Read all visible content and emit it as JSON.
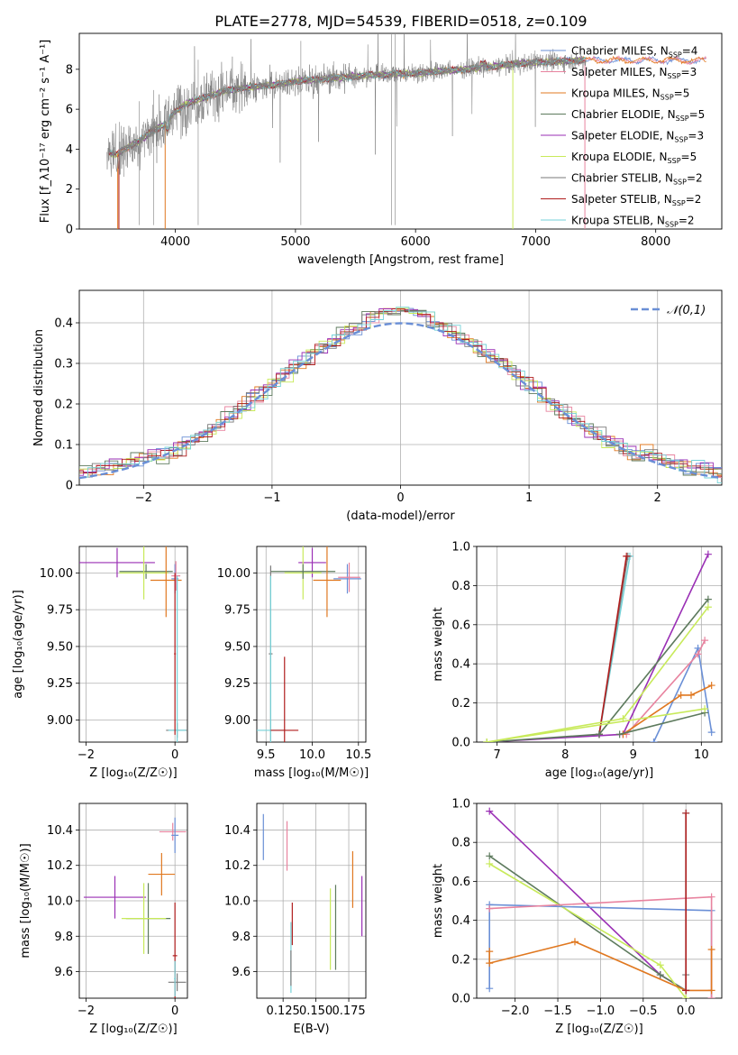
{
  "figure": {
    "title": "PLATE=2778, MJD=54539, FIBERID=0518, z=0.109"
  },
  "colors": {
    "chabrier_miles": "#6a8fd6",
    "salpeter_miles": "#e8839f",
    "kroupa_miles": "#e07820",
    "chabrier_elodie": "#5d7a5d",
    "salpeter_elodie": "#9a2fb5",
    "kroupa_elodie": "#c8ea5a",
    "chabrier_stelib": "#7a7a7a",
    "salpeter_stelib": "#b01d1d",
    "kroupa_stelib": "#75d2d8",
    "grid": "#b0b0b0",
    "observed": "#808080"
  },
  "chart_data": [
    {
      "id": "spectrum",
      "type": "line",
      "xlabel": "wavelength [Angstrom, rest frame]",
      "ylabel": "Flux [f_λ10⁻¹⁷ erg cm⁻² s⁻¹ A⁻¹]",
      "xlim": [
        3200,
        8550
      ],
      "ylim": [
        0,
        9.8
      ],
      "xticks": [
        4000,
        5000,
        6000,
        7000,
        8000
      ],
      "yticks": [
        0,
        2,
        4,
        6,
        8
      ],
      "grid": false,
      "legend_position": "upper-right",
      "continuum": [
        [
          3430,
          3.9
        ],
        [
          3500,
          3.7
        ],
        [
          3600,
          4.1
        ],
        [
          3700,
          4.4
        ],
        [
          3800,
          4.9
        ],
        [
          3900,
          5.2
        ],
        [
          4000,
          5.9
        ],
        [
          4100,
          6.3
        ],
        [
          4200,
          6.5
        ],
        [
          4400,
          6.9
        ],
        [
          4600,
          7.1
        ],
        [
          4800,
          7.2
        ],
        [
          5000,
          7.4
        ],
        [
          5200,
          7.5
        ],
        [
          5400,
          7.6
        ],
        [
          5600,
          7.7
        ],
        [
          5800,
          7.75
        ],
        [
          6000,
          7.8
        ],
        [
          6200,
          7.9
        ],
        [
          6400,
          8.0
        ],
        [
          6600,
          8.1
        ],
        [
          6800,
          8.25
        ],
        [
          7000,
          8.35
        ],
        [
          7200,
          8.4
        ],
        [
          7420,
          8.45
        ]
      ],
      "observed_range": [
        3430,
        7420
      ],
      "model_extension_range": [
        7420,
        8420
      ],
      "legend": [
        {
          "key": "chabrier_miles",
          "label": "Chabrier MILES, N",
          "sub": "SSP",
          "eq": "=4"
        },
        {
          "key": "salpeter_miles",
          "label": "Salpeter MILES, N",
          "sub": "SSP",
          "eq": "=3"
        },
        {
          "key": "kroupa_miles",
          "label": "Kroupa MILES, N",
          "sub": "SSP",
          "eq": "=5"
        },
        {
          "key": "chabrier_elodie",
          "label": "Chabrier ELODIE, N",
          "sub": "SSP",
          "eq": "=5"
        },
        {
          "key": "salpeter_elodie",
          "label": "Salpeter ELODIE, N",
          "sub": "SSP",
          "eq": "=3"
        },
        {
          "key": "kroupa_elodie",
          "label": "Kroupa ELODIE, N",
          "sub": "SSP",
          "eq": "=5"
        },
        {
          "key": "chabrier_stelib",
          "label": "Chabrier STELIB, N",
          "sub": "SSP",
          "eq": "=2"
        },
        {
          "key": "salpeter_stelib",
          "label": "Salpeter STELIB, N",
          "sub": "SSP",
          "eq": "=2"
        },
        {
          "key": "kroupa_stelib",
          "label": "Kroupa STELIB, N",
          "sub": "SSP",
          "eq": "=2"
        }
      ]
    },
    {
      "id": "residuals",
      "type": "line",
      "xlabel": "(data-model)/error",
      "ylabel": "Normed distribution",
      "xlim": [
        -2.5,
        2.5
      ],
      "ylim": [
        0,
        0.48
      ],
      "xticks": [
        -2,
        -1,
        0,
        1,
        2
      ],
      "yticks": [
        0.0,
        0.1,
        0.2,
        0.3,
        0.4
      ],
      "grid": true,
      "bin_width": 0.1,
      "legend": [
        {
          "label": "𝒩(0,1)",
          "style": "dashed",
          "color_key": "chabrier_miles"
        }
      ],
      "legend_position": "upper-right"
    },
    {
      "id": "age_vs_Z",
      "type": "scatter",
      "xlabel": "Z [log₁₀(Z/Z☉)]",
      "ylabel": "age  [log₁₀(age/yr)]",
      "xlim": [
        -2.15,
        0.28
      ],
      "ylim": [
        8.85,
        10.18
      ],
      "xticks": [
        -2,
        0
      ],
      "yticks": [
        9.0,
        9.25,
        9.5,
        9.75,
        10.0
      ],
      "ytick_labels": [
        "9.00",
        "9.25",
        "9.50",
        "9.75",
        "10.00"
      ],
      "grid": true,
      "points": [
        {
          "key": "salpeter_elodie",
          "x": -1.3,
          "y": 10.07,
          "xe": 0.85,
          "ye": 0.1
        },
        {
          "key": "chabrier_elodie",
          "x": -0.65,
          "y": 10.01,
          "xe": 0.6,
          "ye": 0.05
        },
        {
          "key": "kroupa_elodie",
          "x": -0.7,
          "y": 10.0,
          "xe": 0.55,
          "ye": 0.18
        },
        {
          "key": "kroupa_miles",
          "x": -0.2,
          "y": 9.95,
          "xe": 0.35,
          "ye": 0.25
        },
        {
          "key": "chabrier_miles",
          "x": 0.0,
          "y": 9.96,
          "xe": 0.08,
          "ye": 0.1
        },
        {
          "key": "salpeter_miles",
          "x": 0.02,
          "y": 9.98,
          "xe": 0.1,
          "ye": 0.1
        },
        {
          "key": "chabrier_stelib",
          "x": 0.05,
          "y": 8.93,
          "xe": 0.25,
          "ye": 0.05
        },
        {
          "key": "kroupa_stelib",
          "x": 0.05,
          "y": 8.93,
          "xe": 0.2,
          "ye": 1.05
        },
        {
          "key": "salpeter_stelib",
          "x": 0.0,
          "y": 9.45,
          "xe": 0.02,
          "ye": 0.55
        }
      ]
    },
    {
      "id": "age_vs_mass",
      "type": "scatter",
      "xlabel": "mass [log₁₀(M/M☉)]",
      "ylabel": "",
      "xlim": [
        9.4,
        10.58
      ],
      "ylim": [
        8.85,
        10.18
      ],
      "xticks": [
        9.5,
        10.0,
        10.5
      ],
      "xtick_labels": [
        "9.5",
        "10.0",
        "10.5"
      ],
      "yticks": [
        9.0,
        9.25,
        9.5,
        9.75,
        10.0
      ],
      "ytick_labels": [
        "9.00",
        "9.25",
        "9.50",
        "9.75",
        "10.00"
      ],
      "grid": true,
      "points": [
        {
          "key": "salpeter_elodie",
          "x": 10.0,
          "y": 10.07,
          "xe": 0.15,
          "ye": 0.1
        },
        {
          "key": "kroupa_elodie",
          "x": 9.9,
          "y": 10.0,
          "xe": 0.2,
          "ye": 0.18
        },
        {
          "key": "chabrier_elodie",
          "x": 9.9,
          "y": 10.01,
          "xe": 0.35,
          "ye": 0.05
        },
        {
          "key": "kroupa_miles",
          "x": 10.16,
          "y": 9.95,
          "xe": 0.15,
          "ye": 0.25
        },
        {
          "key": "chabrier_miles",
          "x": 10.38,
          "y": 9.96,
          "xe": 0.15,
          "ye": 0.1
        },
        {
          "key": "salpeter_miles",
          "x": 10.4,
          "y": 9.97,
          "xe": 0.12,
          "ye": 0.1
        },
        {
          "key": "chabrier_stelib",
          "x": 9.55,
          "y": 9.45,
          "xe": 0.02,
          "ye": 0.6
        },
        {
          "key": "kroupa_stelib",
          "x": 9.55,
          "y": 8.93,
          "xe": 0.15,
          "ye": 1.05
        },
        {
          "key": "salpeter_stelib",
          "x": 9.7,
          "y": 8.93,
          "xe": 0.15,
          "ye": 0.5
        }
      ]
    },
    {
      "id": "weight_vs_age",
      "type": "line",
      "xlabel": "age  [log₁₀(age/yr)]",
      "ylabel": "mass weight",
      "xlim": [
        6.7,
        10.3
      ],
      "ylim": [
        0,
        1.0
      ],
      "xticks": [
        7,
        8,
        9,
        10
      ],
      "yticks": [
        0.0,
        0.2,
        0.4,
        0.6,
        0.8,
        1.0
      ],
      "ytick_labels": [
        "0.0",
        "0.2",
        "0.4",
        "0.6",
        "0.8",
        "1.0"
      ],
      "grid": true,
      "series": [
        {
          "key": "kroupa_stelib",
          "x": [
            8.5,
            8.95
          ],
          "y": [
            0.04,
            0.95
          ]
        },
        {
          "key": "chabrier_stelib",
          "x": [
            8.5,
            8.92
          ],
          "y": [
            0.04,
            0.95
          ]
        },
        {
          "key": "salpeter_stelib",
          "x": [
            8.5,
            8.9
          ],
          "y": [
            0.04,
            0.95
          ]
        },
        {
          "key": "salpeter_elodie",
          "x": [
            6.85,
            8.85,
            10.1
          ],
          "y": [
            0.0,
            0.04,
            0.96
          ]
        },
        {
          "key": "chabrier_elodie",
          "x": [
            6.85,
            8.5,
            10.1
          ],
          "y": [
            0.0,
            0.04,
            0.73
          ]
        },
        {
          "key": "kroupa_elodie",
          "x": [
            6.85,
            8.85,
            10.1
          ],
          "y": [
            0.0,
            0.12,
            0.69
          ]
        },
        {
          "key": "chabrier_miles",
          "x": [
            9.3,
            9.95,
            10.15
          ],
          "y": [
            0.0,
            0.48,
            0.05
          ]
        },
        {
          "key": "salpeter_miles",
          "x": [
            8.9,
            9.95,
            10.05
          ],
          "y": [
            0.04,
            0.45,
            0.52
          ]
        },
        {
          "key": "kroupa_miles",
          "x": [
            8.85,
            9.7,
            9.85,
            10.15
          ],
          "y": [
            0.04,
            0.24,
            0.24,
            0.29
          ]
        },
        {
          "key": "chabrier_elodie",
          "x": [
            8.8,
            10.05
          ],
          "y": [
            0.04,
            0.15
          ]
        },
        {
          "key": "kroupa_elodie",
          "x": [
            6.85,
            10.05
          ],
          "y": [
            0.0,
            0.17
          ]
        }
      ]
    },
    {
      "id": "mass_vs_Z",
      "type": "scatter",
      "xlabel": "Z [log₁₀(Z/Z☉)]",
      "ylabel": "mass [log₁₀(M/M☉)]",
      "xlim": [
        -2.15,
        0.28
      ],
      "ylim": [
        9.45,
        10.55
      ],
      "xticks": [
        -2,
        0
      ],
      "yticks": [
        9.6,
        9.8,
        10.0,
        10.2,
        10.4
      ],
      "ytick_labels": [
        "9.6",
        "9.8",
        "10.0",
        "10.2",
        "10.4"
      ],
      "grid": true,
      "points": [
        {
          "key": "salpeter_elodie",
          "x": -1.35,
          "y": 10.02,
          "xe": 0.7,
          "ye": 0.12
        },
        {
          "key": "chabrier_elodie",
          "x": -0.6,
          "y": 9.9,
          "xe": 0.5,
          "ye": 0.2
        },
        {
          "key": "kroupa_elodie",
          "x": -0.7,
          "y": 9.9,
          "xe": 0.5,
          "ye": 0.2
        },
        {
          "key": "kroupa_miles",
          "x": -0.3,
          "y": 10.15,
          "xe": 0.3,
          "ye": 0.12
        },
        {
          "key": "salpeter_miles",
          "x": -0.05,
          "y": 10.39,
          "xe": 0.3,
          "ye": 0.05
        },
        {
          "key": "chabrier_miles",
          "x": 0.0,
          "y": 10.37,
          "xe": 0.08,
          "ye": 0.1
        },
        {
          "key": "salpeter_stelib",
          "x": 0.0,
          "y": 9.69,
          "xe": 0.05,
          "ye": 0.3
        },
        {
          "key": "chabrier_stelib",
          "x": 0.05,
          "y": 9.54,
          "xe": 0.2,
          "ye": 0.05
        },
        {
          "key": "kroupa_stelib",
          "x": 0.0,
          "y": 9.56,
          "xe": 0.02,
          "ye": 0.1
        }
      ]
    },
    {
      "id": "mass_vs_ebv",
      "type": "scatter",
      "xlabel": "E(B-V)",
      "ylabel": "",
      "xlim": [
        0.105,
        0.188
      ],
      "ylim": [
        9.45,
        10.55
      ],
      "xticks": [
        0.125,
        0.15,
        0.175
      ],
      "xtick_labels": [
        "0.125",
        "0.150",
        "0.175"
      ],
      "yticks": [
        9.6,
        9.8,
        10.0,
        10.2,
        10.4
      ],
      "ytick_labels": [
        "9.6",
        "9.8",
        "10.0",
        "10.2",
        "10.4"
      ],
      "grid": true,
      "points": [
        {
          "key": "chabrier_miles",
          "x": 0.11,
          "y": 10.36,
          "xe": 0.0,
          "ye": 0.13
        },
        {
          "key": "salpeter_miles",
          "x": 0.128,
          "y": 10.31,
          "xe": 0.0,
          "ye": 0.14
        },
        {
          "key": "salpeter_stelib",
          "x": 0.132,
          "y": 9.87,
          "xe": 0.0,
          "ye": 0.12
        },
        {
          "key": "kroupa_stelib",
          "x": 0.131,
          "y": 9.68,
          "xe": 0.0,
          "ye": 0.2
        },
        {
          "key": "chabrier_stelib",
          "x": 0.131,
          "y": 9.62,
          "xe": 0.0,
          "ye": 0.1
        },
        {
          "key": "kroupa_elodie",
          "x": 0.161,
          "y": 9.84,
          "xe": 0.0,
          "ye": 0.23
        },
        {
          "key": "chabrier_elodie",
          "x": 0.165,
          "y": 9.85,
          "xe": 0.0,
          "ye": 0.24
        },
        {
          "key": "kroupa_miles",
          "x": 0.178,
          "y": 10.12,
          "xe": 0.0,
          "ye": 0.16
        },
        {
          "key": "salpeter_elodie",
          "x": 0.185,
          "y": 9.97,
          "xe": 0.0,
          "ye": 0.17
        }
      ]
    },
    {
      "id": "weight_vs_Z",
      "type": "line",
      "xlabel": "Z [log₁₀(Z/Z☉)]",
      "ylabel": "mass weight",
      "xlim": [
        -2.45,
        0.42
      ],
      "ylim": [
        0,
        1.0
      ],
      "xticks": [
        -2.0,
        -1.5,
        -1.0,
        -0.5,
        0.0
      ],
      "xtick_labels": [
        "−2.0",
        "−1.5",
        "−1.0",
        "−0.5",
        "0.0"
      ],
      "yticks": [
        0.0,
        0.2,
        0.4,
        0.6,
        0.8,
        1.0
      ],
      "ytick_labels": [
        "0.0",
        "0.2",
        "0.4",
        "0.6",
        "0.8",
        "1.0"
      ],
      "grid": true,
      "series": [
        {
          "key": "salpeter_elodie",
          "x": [
            -2.3,
            -0.3,
            0.0
          ],
          "y": [
            0.96,
            0.12,
            0.04
          ]
        },
        {
          "key": "chabrier_elodie",
          "x": [
            -2.3,
            -0.3,
            0.0
          ],
          "y": [
            0.73,
            0.12,
            0.04
          ]
        },
        {
          "key": "kroupa_elodie",
          "x": [
            -2.3,
            -0.3,
            0.0
          ],
          "y": [
            0.69,
            0.17,
            0.0
          ]
        },
        {
          "key": "chabrier_miles",
          "x": [
            -2.3,
            -2.3,
            0.3,
            0.3
          ],
          "y": [
            0.05,
            0.48,
            0.45,
            0.0
          ]
        },
        {
          "key": "salpeter_miles",
          "x": [
            -2.3,
            0.3,
            0.3
          ],
          "y": [
            0.46,
            0.52,
            0.0
          ]
        },
        {
          "key": "kroupa_miles",
          "x": [
            -2.3,
            -2.3,
            -1.3,
            0.0,
            0.3,
            0.3
          ],
          "y": [
            0.24,
            0.18,
            0.29,
            0.04,
            0.04,
            0.25
          ]
        },
        {
          "key": "kroupa_stelib",
          "x": [
            0.0,
            0.0
          ],
          "y": [
            0.04,
            0.95
          ]
        },
        {
          "key": "chabrier_stelib",
          "x": [
            0.0,
            0.0
          ],
          "y": [
            0.04,
            0.12
          ]
        },
        {
          "key": "salpeter_stelib",
          "x": [
            0.0,
            0.0
          ],
          "y": [
            0.04,
            0.95
          ]
        }
      ]
    }
  ]
}
